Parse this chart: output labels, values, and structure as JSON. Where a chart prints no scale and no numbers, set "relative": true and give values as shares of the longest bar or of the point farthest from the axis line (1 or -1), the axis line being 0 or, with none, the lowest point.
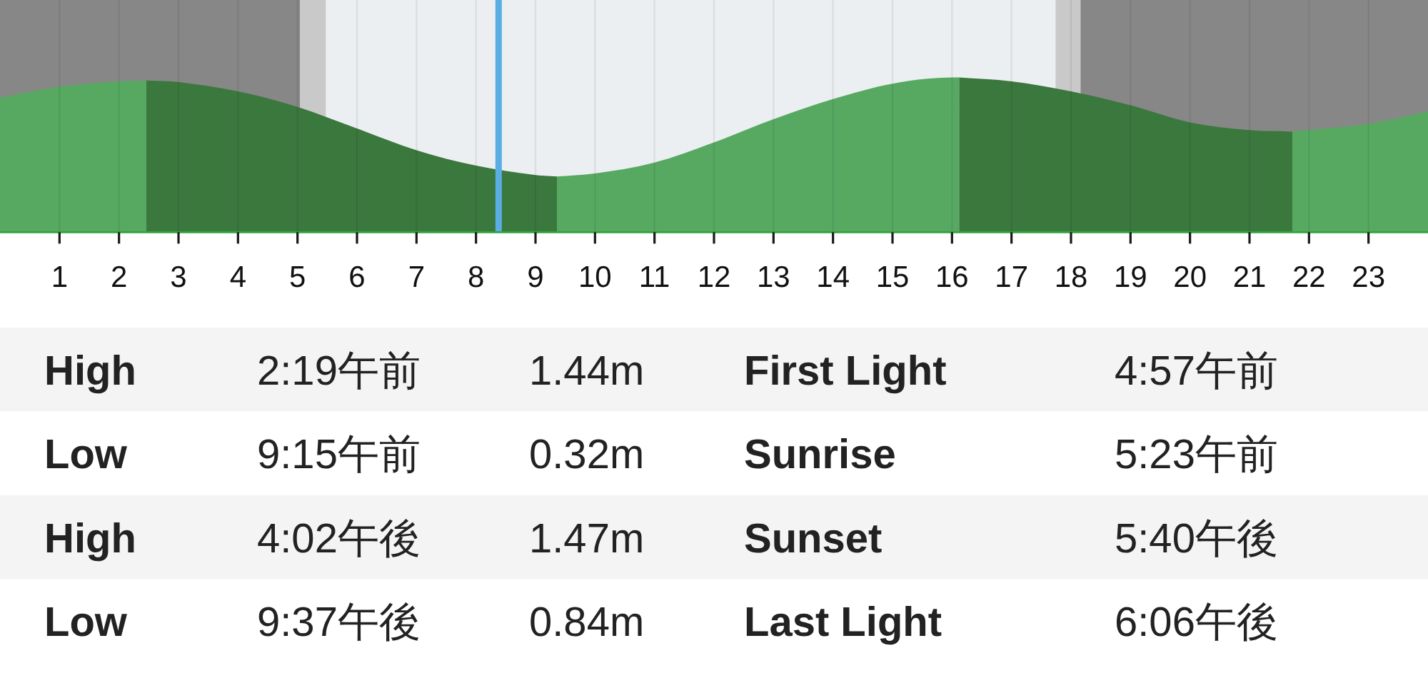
{
  "chart_data": {
    "type": "area",
    "relative": true,
    "xlim": [
      0,
      24
    ],
    "xticks": [
      1,
      2,
      3,
      4,
      5,
      6,
      7,
      8,
      9,
      10,
      11,
      12,
      13,
      14,
      15,
      16,
      17,
      18,
      19,
      20,
      21,
      22,
      23
    ],
    "grid": "x",
    "series": [
      {
        "color": "#57a962",
        "x": [
          0,
          1,
          2,
          2.46
        ],
        "values": [
          0.87,
          0.94,
          0.975,
          0.98
        ]
      },
      {
        "color": "#3b783e",
        "x": [
          2.46,
          3,
          4,
          5,
          6,
          7,
          8,
          9,
          9.36
        ],
        "values": [
          0.98,
          0.97,
          0.91,
          0.81,
          0.67,
          0.53,
          0.43,
          0.37,
          0.36
        ]
      },
      {
        "color": "#57a962",
        "x": [
          9.36,
          10,
          11,
          12,
          13,
          14,
          15,
          16,
          16.12
        ],
        "values": [
          0.36,
          0.38,
          0.45,
          0.58,
          0.73,
          0.86,
          0.96,
          1,
          1
        ]
      },
      {
        "color": "#3b783e",
        "x": [
          16.12,
          17,
          18,
          19,
          20,
          21,
          21.72
        ],
        "values": [
          1,
          0.975,
          0.91,
          0.82,
          0.71,
          0.66,
          0.65
        ]
      },
      {
        "color": "#57a962",
        "x": [
          21.72,
          22,
          23,
          24
        ],
        "values": [
          0.65,
          0.66,
          0.7,
          0.78
        ]
      }
    ],
    "bands": [
      {
        "axis": "x",
        "from": 0,
        "to": 5.04,
        "color": "#878787"
      },
      {
        "axis": "x",
        "from": 5.04,
        "to": 5.48,
        "color": "#c9c9c9"
      },
      {
        "axis": "x",
        "from": 5.48,
        "to": 17.74,
        "color": "#eceff1"
      },
      {
        "axis": "x",
        "from": 17.74,
        "to": 18.16,
        "color": "#c9c9c9"
      },
      {
        "axis": "x",
        "from": 18.16,
        "to": 24,
        "color": "#878787"
      }
    ],
    "ref_lines": [
      {
        "axis": "x",
        "value": 8.38,
        "color": "#5aaee3"
      }
    ],
    "annotations": [
      "High",
      "2:19午前",
      "1.44m",
      "First Light",
      "4:57午前",
      "Low",
      "9:15午前",
      "0.32m",
      "Sunrise",
      "5:23午前",
      "High",
      "4:02午後",
      "1.47m",
      "Sunset",
      "5:40午後",
      "Low",
      "9:37午後",
      "0.84m",
      "Last Light",
      "6:06午後"
    ]
  }
}
